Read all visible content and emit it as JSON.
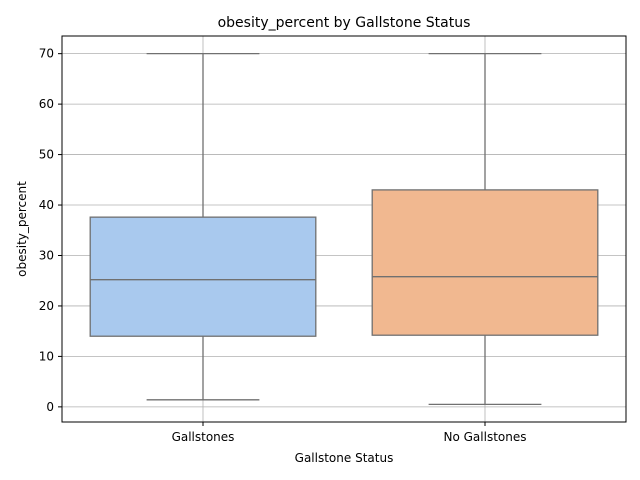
{
  "chart_data": {
    "type": "box",
    "title": "obesity_percent by Gallstone Status",
    "xlabel": "Gallstone Status",
    "ylabel": "obesity_percent",
    "ylim": [
      -3,
      73.5
    ],
    "yticks": [
      0,
      10,
      20,
      30,
      40,
      50,
      60,
      70
    ],
    "grid": true,
    "categories": [
      "Gallstones",
      "No Gallstones"
    ],
    "boxes": [
      {
        "category": "Gallstones",
        "whisker_low": 1.4,
        "q1": 14.0,
        "median": 25.2,
        "q3": 37.6,
        "whisker_high": 70.0,
        "color": "#a9c9ee"
      },
      {
        "category": "No Gallstones",
        "whisker_low": 0.5,
        "q1": 14.2,
        "median": 25.8,
        "q3": 43.0,
        "whisker_high": 70.0,
        "color": "#f1b890"
      }
    ]
  }
}
